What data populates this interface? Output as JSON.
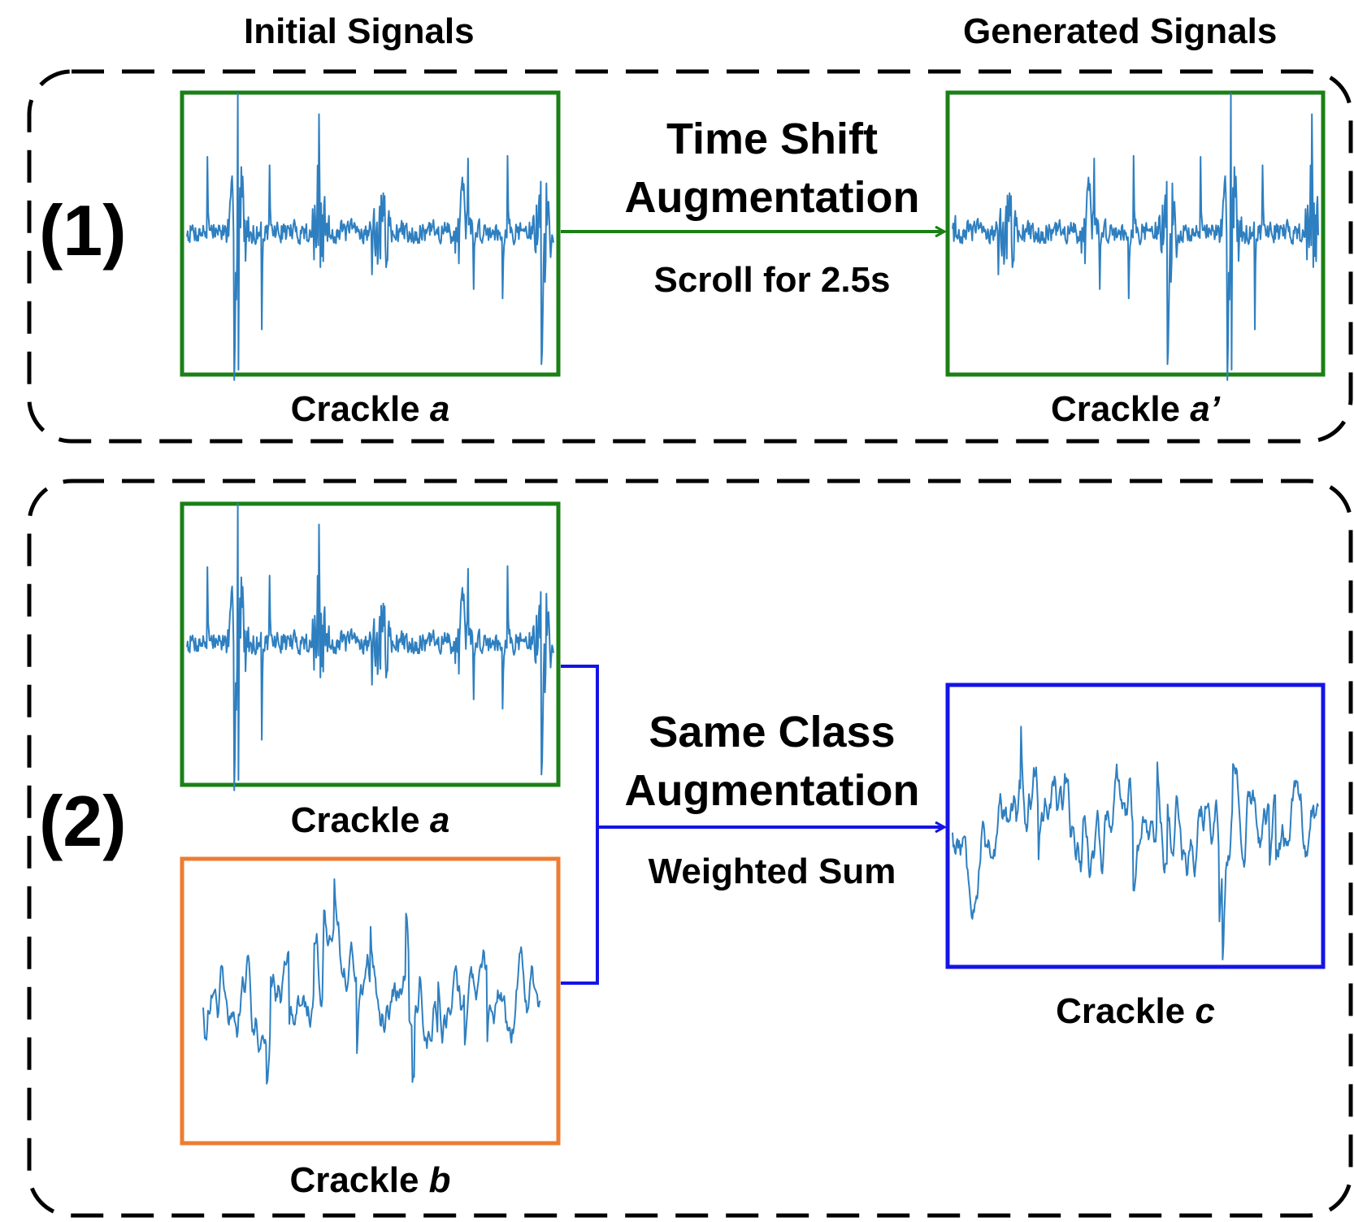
{
  "headers": {
    "initial": "Initial Signals",
    "generated": "Generated Signals"
  },
  "panels": [
    {
      "label": "(1)",
      "title_line1": "Time Shift",
      "title_line2": "Augmentation",
      "subtitle": "Scroll for 2.5s"
    },
    {
      "label": "(2)",
      "title_line1": "Same Class",
      "title_line2": "Augmentation",
      "subtitle": "Weighted Sum"
    }
  ],
  "signals": {
    "a": {
      "prefix": "Crackle ",
      "letter": "a",
      "suffix": ""
    },
    "a_prime": {
      "prefix": "Crackle ",
      "letter": "a",
      "suffix": "’"
    },
    "b": {
      "prefix": "Crackle ",
      "letter": "b",
      "suffix": ""
    },
    "c": {
      "prefix": "Crackle ",
      "letter": "c",
      "suffix": ""
    }
  },
  "colors": {
    "green": "#1a8016",
    "orange": "#ed7d31",
    "blue": "#1414e6",
    "wave": "#2e7fc0"
  }
}
